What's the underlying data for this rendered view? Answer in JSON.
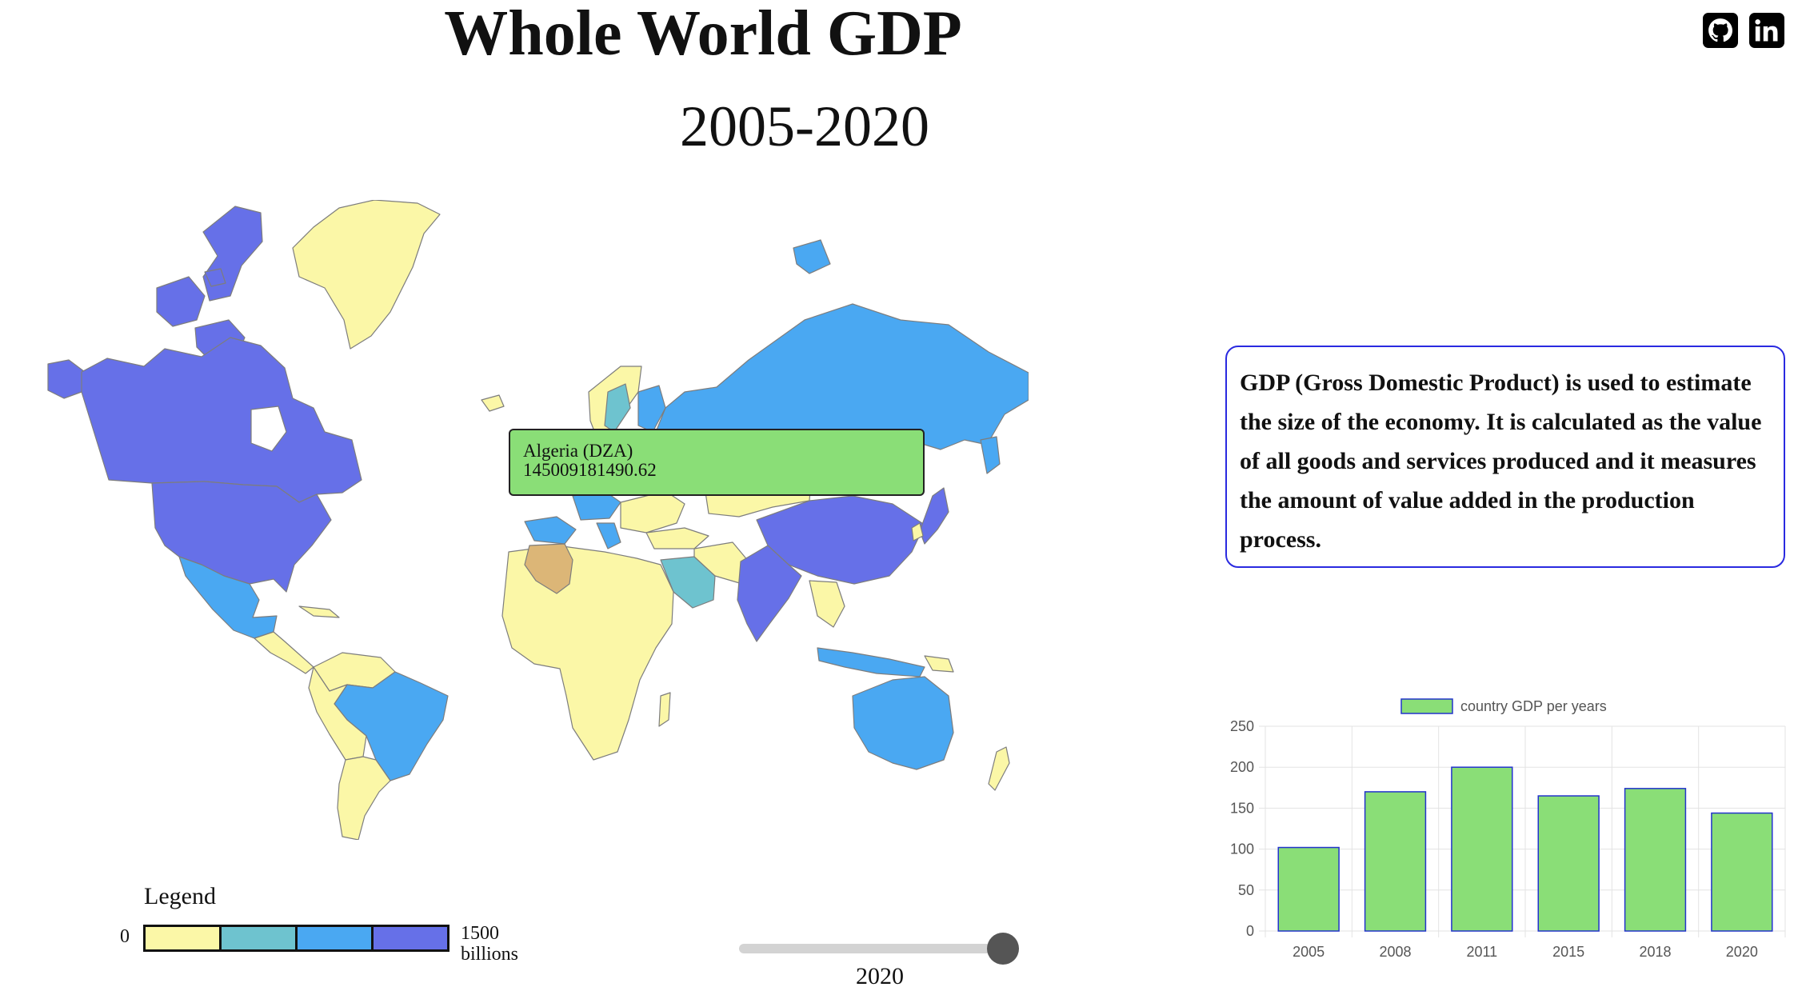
{
  "header": {
    "title": "Whole World GDP",
    "subtitle": "2005-2020"
  },
  "social": {
    "github_icon": "github-icon",
    "linkedin_icon": "linkedin-icon"
  },
  "map": {
    "colors": {
      "tier1": "#fbf7a7",
      "tier2": "#6ec3cf",
      "tier3": "#4aa8f2",
      "tier4": "#6670e8",
      "highlight": "#dcb677",
      "border": "#7d7d7d"
    },
    "tooltip": {
      "country": "Algeria (DZA)",
      "value": "145009181490.62"
    }
  },
  "legend": {
    "title": "Legend",
    "min_label": "0",
    "max_label_value": "1500",
    "max_label_unit": "billions",
    "swatches": [
      "#fbf7a7",
      "#6ec3cf",
      "#4aa8f2",
      "#6670e8"
    ]
  },
  "slider": {
    "value": "2020",
    "fraction": 1.0
  },
  "info": {
    "text": "GDP (Gross Domestic Product) is used to estimate the size of the economy. It is calculated as the value of all goods and services produced and it measures the amount of value added in the production process."
  },
  "chart_data": {
    "type": "bar",
    "categories": [
      "2005",
      "2008",
      "2011",
      "2015",
      "2018",
      "2020"
    ],
    "series": [
      {
        "name": "country GDP per years",
        "values": [
          102,
          170,
          200,
          165,
          174,
          144
        ],
        "color": "#8ade77",
        "border": "#2233cc"
      }
    ],
    "yticks": [
      "0",
      "50",
      "100",
      "150",
      "200",
      "250"
    ],
    "ylim": [
      0,
      250
    ],
    "grid": true,
    "legend_position": "top"
  }
}
